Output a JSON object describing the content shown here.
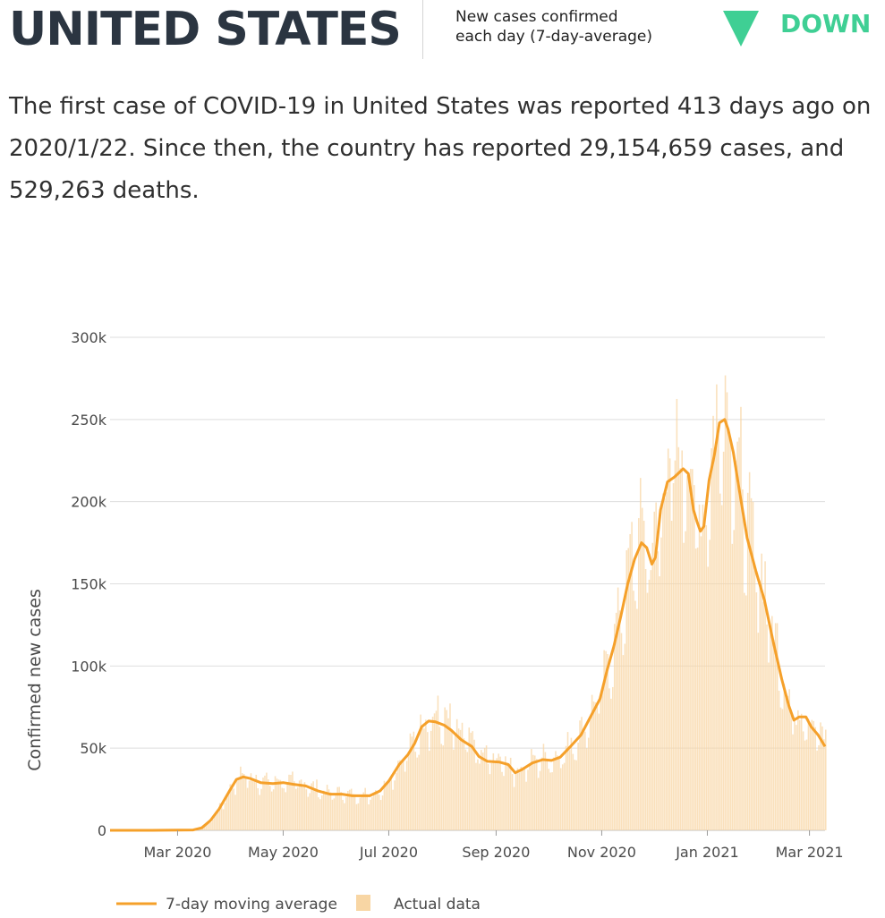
{
  "header": {
    "country": "UNITED STATES",
    "metric_line1": "New cases confirmed",
    "metric_line2": "each day (7-day-average)",
    "trend": "DOWN",
    "trend_color": "#3fcf94",
    "trend_icon": "triangle-down-icon"
  },
  "summary": {
    "text": "The first case of COVID-19 in United States was reported 413 days ago on 2020/1/22. Since then, the country has reported 29,154,659 cases, and 529,263 deaths."
  },
  "colors": {
    "line": "#f5a02a",
    "bars": "#f8d6a4",
    "grid": "#dedede",
    "title": "#2b3541"
  },
  "chart_data": {
    "type": "area",
    "ylabel": "Confirmed new cases",
    "xlabel": "",
    "x_range": [
      "2020-01-22",
      "2021-03-10"
    ],
    "ylim": [
      0,
      300000
    ],
    "y_ticks": [
      0,
      50000,
      100000,
      150000,
      200000,
      250000,
      300000
    ],
    "y_tick_labels": [
      "0",
      "50k",
      "100k",
      "150k",
      "200k",
      "250k",
      "300k"
    ],
    "x_ticks": [
      "2020-03-01",
      "2020-05-01",
      "2020-07-01",
      "2020-09-01",
      "2020-11-01",
      "2021-01-01",
      "2021-03-01"
    ],
    "x_tick_labels": [
      "Mar 2020",
      "May 2020",
      "Jul 2020",
      "Sep 2020",
      "Nov 2020",
      "Jan 2021",
      "Mar 2021"
    ],
    "grid": "horizontal",
    "legend_position": "bottom-left",
    "series": [
      {
        "name": "7-day moving average",
        "style": "line",
        "points": [
          [
            "2020-01-22",
            0
          ],
          [
            "2020-02-15",
            0
          ],
          [
            "2020-03-10",
            200
          ],
          [
            "2020-03-15",
            1500
          ],
          [
            "2020-03-20",
            6000
          ],
          [
            "2020-03-25",
            13000
          ],
          [
            "2020-03-31",
            24000
          ],
          [
            "2020-04-04",
            31000
          ],
          [
            "2020-04-08",
            32500
          ],
          [
            "2020-04-12",
            31500
          ],
          [
            "2020-04-18",
            29000
          ],
          [
            "2020-04-25",
            28500
          ],
          [
            "2020-05-01",
            29000
          ],
          [
            "2020-05-07",
            28000
          ],
          [
            "2020-05-14",
            27000
          ],
          [
            "2020-05-21",
            24000
          ],
          [
            "2020-05-28",
            22000
          ],
          [
            "2020-06-04",
            22000
          ],
          [
            "2020-06-10",
            21000
          ],
          [
            "2020-06-20",
            21000
          ],
          [
            "2020-06-26",
            24000
          ],
          [
            "2020-07-01",
            30000
          ],
          [
            "2020-07-07",
            40000
          ],
          [
            "2020-07-12",
            46000
          ],
          [
            "2020-07-16",
            53000
          ],
          [
            "2020-07-20",
            63000
          ],
          [
            "2020-07-24",
            66500
          ],
          [
            "2020-07-28",
            66000
          ],
          [
            "2020-08-02",
            64000
          ],
          [
            "2020-08-06",
            61000
          ],
          [
            "2020-08-12",
            55000
          ],
          [
            "2020-08-18",
            51000
          ],
          [
            "2020-08-22",
            45000
          ],
          [
            "2020-08-27",
            42000
          ],
          [
            "2020-09-03",
            41500
          ],
          [
            "2020-09-08",
            40000
          ],
          [
            "2020-09-12",
            35000
          ],
          [
            "2020-09-16",
            37000
          ],
          [
            "2020-09-22",
            41000
          ],
          [
            "2020-09-28",
            43000
          ],
          [
            "2020-10-03",
            42500
          ],
          [
            "2020-10-08",
            44500
          ],
          [
            "2020-10-14",
            51000
          ],
          [
            "2020-10-20",
            58000
          ],
          [
            "2020-10-26",
            70000
          ],
          [
            "2020-10-31",
            80000
          ],
          [
            "2020-11-04",
            97000
          ],
          [
            "2020-11-08",
            112000
          ],
          [
            "2020-11-12",
            130000
          ],
          [
            "2020-11-16",
            150000
          ],
          [
            "2020-11-20",
            165000
          ],
          [
            "2020-11-24",
            175000
          ],
          [
            "2020-11-27",
            172000
          ],
          [
            "2020-11-30",
            162000
          ],
          [
            "2020-12-02",
            166000
          ],
          [
            "2020-12-05",
            195000
          ],
          [
            "2020-12-09",
            212000
          ],
          [
            "2020-12-13",
            215000
          ],
          [
            "2020-12-16",
            218000
          ],
          [
            "2020-12-18",
            220000
          ],
          [
            "2020-12-21",
            217000
          ],
          [
            "2020-12-24",
            195000
          ],
          [
            "2020-12-26",
            188000
          ],
          [
            "2020-12-28",
            182000
          ],
          [
            "2020-12-30",
            185000
          ],
          [
            "2021-01-02",
            213000
          ],
          [
            "2021-01-05",
            228000
          ],
          [
            "2021-01-08",
            248000
          ],
          [
            "2021-01-11",
            250000
          ],
          [
            "2021-01-13",
            244000
          ],
          [
            "2021-01-16",
            230000
          ],
          [
            "2021-01-19",
            210000
          ],
          [
            "2021-01-24",
            178000
          ],
          [
            "2021-01-29",
            158000
          ],
          [
            "2021-02-03",
            140000
          ],
          [
            "2021-02-08",
            115000
          ],
          [
            "2021-02-13",
            92000
          ],
          [
            "2021-02-17",
            76000
          ],
          [
            "2021-02-20",
            67000
          ],
          [
            "2021-02-23",
            69000
          ],
          [
            "2021-02-27",
            69000
          ],
          [
            "2021-03-02",
            63000
          ],
          [
            "2021-03-06",
            58000
          ],
          [
            "2021-03-10",
            51000
          ]
        ]
      },
      {
        "name": "Actual data",
        "style": "bars",
        "note": "daily values fluctuate around the moving average, peaking near 300k in early Jan 2021"
      }
    ]
  }
}
